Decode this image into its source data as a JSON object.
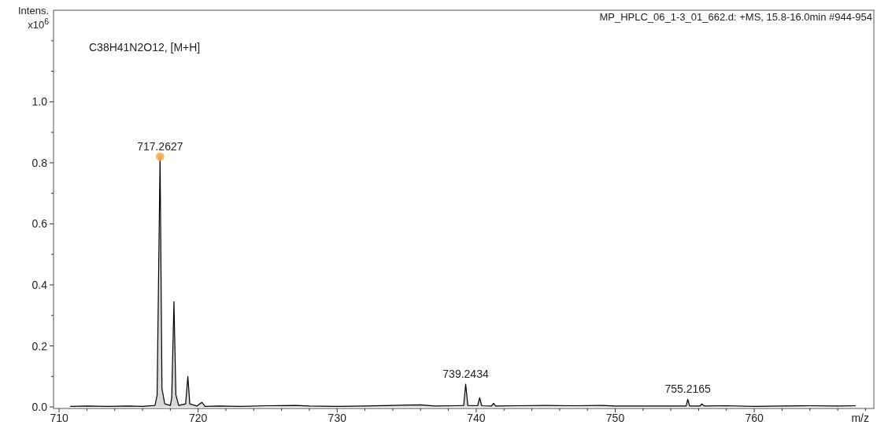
{
  "chart_data": {
    "type": "area",
    "title": "MP_HPLC_06_1-3_01_662.d: +MS, 15.8-16.0min #944-954",
    "xlabel": "m/z",
    "ylabel": "Intens.\nx10$^{6}$",
    "annotations": [
      "C38H41N2O12, [M+H]",
      {
        "text": "717.2627",
        "x": 717.2627,
        "y": 0.82
      },
      {
        "text": "739.2434",
        "x": 739.2434,
        "y": 0.075
      },
      {
        "text": "755.2165",
        "x": 755.2165,
        "y": 0.025
      }
    ],
    "xlim": [
      709.6,
      768.6
    ],
    "ylim": [
      -0.005,
      1.3
    ],
    "xticks": [
      {
        "value": 710,
        "label": "710"
      },
      {
        "value": 712,
        "label": null
      },
      {
        "value": 714,
        "label": null
      },
      {
        "value": 716,
        "label": null
      },
      {
        "value": 718,
        "label": null
      },
      {
        "value": 720,
        "label": "720"
      },
      {
        "value": 722,
        "label": null
      },
      {
        "value": 724,
        "label": null
      },
      {
        "value": 726,
        "label": null
      },
      {
        "value": 728,
        "label": null
      },
      {
        "value": 730,
        "label": "730"
      },
      {
        "value": 732,
        "label": null
      },
      {
        "value": 734,
        "label": null
      },
      {
        "value": 736,
        "label": null
      },
      {
        "value": 738,
        "label": null
      },
      {
        "value": 740,
        "label": "740"
      },
      {
        "value": 742,
        "label": null
      },
      {
        "value": 744,
        "label": null
      },
      {
        "value": 746,
        "label": null
      },
      {
        "value": 748,
        "label": null
      },
      {
        "value": 750,
        "label": "750"
      },
      {
        "value": 752,
        "label": null
      },
      {
        "value": 754,
        "label": null
      },
      {
        "value": 756,
        "label": null
      },
      {
        "value": 758,
        "label": null
      },
      {
        "value": 760,
        "label": "760"
      },
      {
        "value": 762,
        "label": null
      },
      {
        "value": 764,
        "label": null
      },
      {
        "value": 766,
        "label": null
      },
      {
        "value": 768,
        "label": null
      }
    ],
    "yticks": [
      {
        "value": 0,
        "label": "0.0"
      },
      {
        "value": 0.1,
        "label": null
      },
      {
        "value": 0.2,
        "label": "0.2"
      },
      {
        "value": 0.3,
        "label": null
      },
      {
        "value": 0.4,
        "label": "0.4"
      },
      {
        "value": 0.5,
        "label": null
      },
      {
        "value": 0.6,
        "label": "0.6"
      },
      {
        "value": 0.7,
        "label": null
      },
      {
        "value": 0.8,
        "label": "0.8"
      },
      {
        "value": 0.9,
        "label": null
      },
      {
        "value": 1.0,
        "label": "1.0"
      },
      {
        "value": 1.1,
        "label": null
      },
      {
        "value": 1.2,
        "label": null
      }
    ],
    "grid": false,
    "series": [
      {
        "color": "#000000",
        "marker": "none",
        "x": [
          710.8,
          712,
          713.5,
          715,
          716,
          716.9,
          717.05,
          717.2627,
          717.4,
          717.6,
          718.0,
          718.1,
          718.26,
          718.4,
          718.6,
          719.1,
          719.26,
          719.4,
          719.9,
          720.27,
          720.5,
          721.5,
          723,
          725,
          727,
          728,
          730,
          732,
          734,
          736,
          737,
          738.5,
          739.1,
          739.2434,
          739.4,
          740.1,
          740.25,
          740.4,
          741.1,
          741.25,
          741.4,
          743,
          745,
          747,
          749,
          750,
          752,
          754,
          755.1,
          755.2165,
          755.35,
          756.1,
          756.23,
          756.4,
          758,
          760,
          762,
          764,
          766,
          767.3
        ],
        "values": [
          0.002,
          0.003,
          0.002,
          0.003,
          0.002,
          0.005,
          0.04,
          0.82,
          0.06,
          0.01,
          0.005,
          0.03,
          0.345,
          0.04,
          0.005,
          0.01,
          0.1,
          0.01,
          0.003,
          0.015,
          0.002,
          0.003,
          0.002,
          0.004,
          0.005,
          0.003,
          0.002,
          0.003,
          0.005,
          0.007,
          0.003,
          0.004,
          0.005,
          0.075,
          0.005,
          0.004,
          0.03,
          0.004,
          0.003,
          0.012,
          0.003,
          0.004,
          0.005,
          0.004,
          0.005,
          0.003,
          0.003,
          0.003,
          0.003,
          0.025,
          0.003,
          0.003,
          0.01,
          0.003,
          0.004,
          0.002,
          0.003,
          0.004,
          0.003,
          0.004
        ]
      },
      {
        "type": "scatter",
        "color": "#f5a94a",
        "marker": "circle",
        "x": [
          717.2627
        ],
        "values": [
          0.82
        ]
      }
    ]
  }
}
